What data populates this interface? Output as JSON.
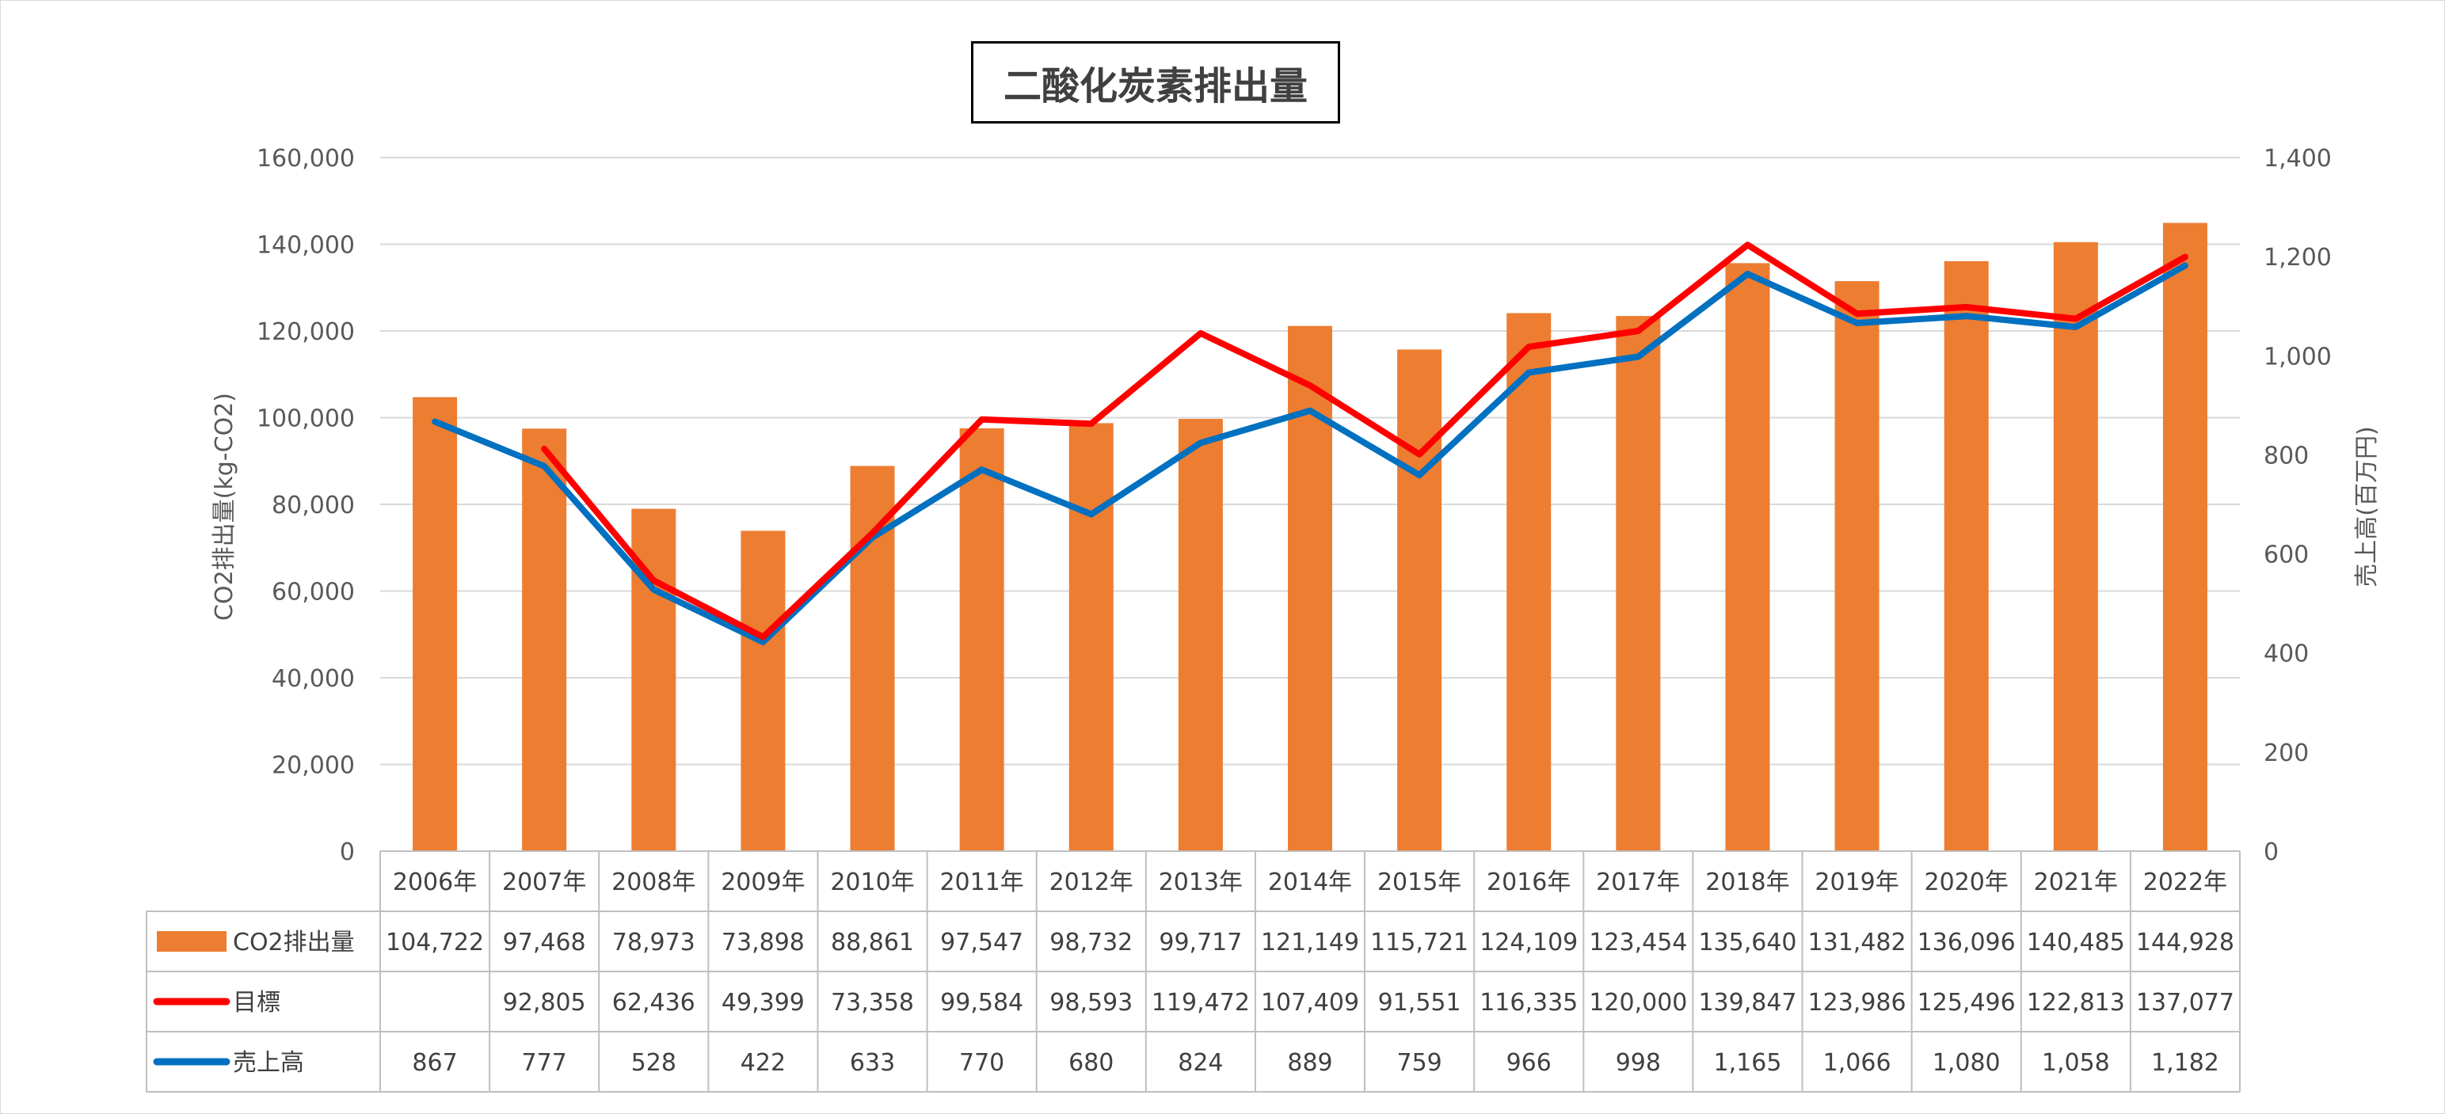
{
  "chart_data": {
    "type": "bar",
    "title": "二酸化炭素排出量",
    "categories": [
      "2006年",
      "2007年",
      "2008年",
      "2009年",
      "2010年",
      "2011年",
      "2012年",
      "2013年",
      "2014年",
      "2015年",
      "2016年",
      "2017年",
      "2018年",
      "2019年",
      "2020年",
      "2021年",
      "2022年"
    ],
    "ylabel": "CO2排出量(kg-CO2)",
    "y2label": "売上高(百万円)",
    "ylim": [
      0,
      160000
    ],
    "y2lim": [
      0,
      1400
    ],
    "yticks": [
      "0",
      "20,000",
      "40,000",
      "60,000",
      "80,000",
      "100,000",
      "120,000",
      "140,000",
      "160,000"
    ],
    "y2ticks": [
      "0",
      "200",
      "400",
      "600",
      "800",
      "1,000",
      "1,200",
      "1,400"
    ],
    "grid": true,
    "legend": "data-table",
    "series": [
      {
        "name": "CO2排出量",
        "type": "bar",
        "axis": "left",
        "color": "#ED7D31",
        "values": [
          104722,
          97468,
          78973,
          73898,
          88861,
          97547,
          98732,
          99717,
          121149,
          115721,
          124109,
          123454,
          135640,
          131482,
          136096,
          140485,
          144928
        ],
        "labels": [
          "104,722",
          "97,468",
          "78,973",
          "73,898",
          "88,861",
          "97,547",
          "98,732",
          "99,717",
          "121,149",
          "115,721",
          "124,109",
          "123,454",
          "135,640",
          "131,482",
          "136,096",
          "140,485",
          "144,928"
        ]
      },
      {
        "name": "目標",
        "type": "line",
        "axis": "left",
        "color": "#FF0000",
        "values": [
          null,
          92805,
          62436,
          49399,
          73358,
          99584,
          98593,
          119472,
          107409,
          91551,
          116335,
          120000,
          139847,
          123986,
          125496,
          122813,
          137077
        ],
        "labels": [
          "",
          "92,805",
          "62,436",
          "49,399",
          "73,358",
          "99,584",
          "98,593",
          "119,472",
          "107,409",
          "91,551",
          "116,335",
          "120,000",
          "139,847",
          "123,986",
          "125,496",
          "122,813",
          "137,077"
        ]
      },
      {
        "name": "売上高",
        "type": "line",
        "axis": "right",
        "color": "#0070C0",
        "values": [
          867,
          777,
          528,
          422,
          633,
          770,
          680,
          824,
          889,
          759,
          966,
          998,
          1165,
          1066,
          1080,
          1058,
          1182
        ],
        "labels": [
          "867",
          "777",
          "528",
          "422",
          "633",
          "770",
          "680",
          "824",
          "889",
          "759",
          "966",
          "998",
          "1,165",
          "1,066",
          "1,080",
          "1,058",
          "1,182"
        ]
      }
    ]
  }
}
